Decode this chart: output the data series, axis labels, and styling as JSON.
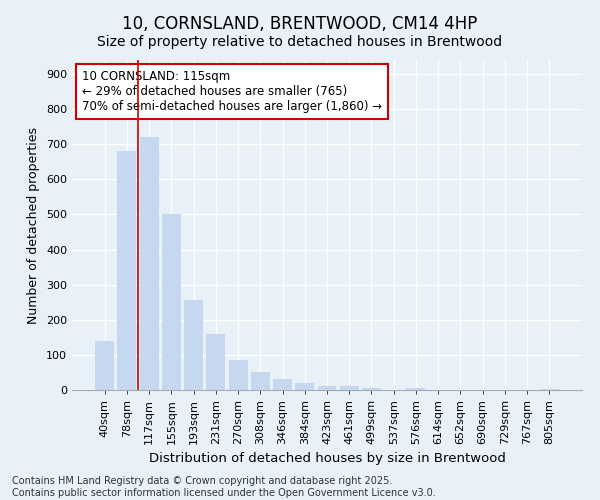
{
  "title": "10, CORNSLAND, BRENTWOOD, CM14 4HP",
  "subtitle": "Size of property relative to detached houses in Brentwood",
  "xlabel": "Distribution of detached houses by size in Brentwood",
  "ylabel": "Number of detached properties",
  "categories": [
    "40sqm",
    "78sqm",
    "117sqm",
    "155sqm",
    "193sqm",
    "231sqm",
    "270sqm",
    "308sqm",
    "346sqm",
    "384sqm",
    "423sqm",
    "461sqm",
    "499sqm",
    "537sqm",
    "576sqm",
    "614sqm",
    "652sqm",
    "690sqm",
    "729sqm",
    "767sqm",
    "805sqm"
  ],
  "values": [
    140,
    680,
    720,
    500,
    255,
    160,
    85,
    50,
    30,
    20,
    10,
    10,
    5,
    0,
    5,
    0,
    0,
    0,
    0,
    0,
    3
  ],
  "bar_color": "#c5d8f0",
  "bar_edgecolor": "#c5d8f0",
  "vline_x_index": 2,
  "vline_color": "#cc0000",
  "annotation_text": "10 CORNSLAND: 115sqm\n← 29% of detached houses are smaller (765)\n70% of semi-detached houses are larger (1,860) →",
  "annotation_box_color": "#cc0000",
  "annotation_bg": "#ffffff",
  "ylim": [
    0,
    940
  ],
  "yticks": [
    0,
    100,
    200,
    300,
    400,
    500,
    600,
    700,
    800,
    900
  ],
  "background_color": "#e8f0f8",
  "grid_color": "#ffffff",
  "footer": "Contains HM Land Registry data © Crown copyright and database right 2025.\nContains public sector information licensed under the Open Government Licence v3.0.",
  "title_fontsize": 12,
  "subtitle_fontsize": 10,
  "xlabel_fontsize": 9.5,
  "ylabel_fontsize": 9,
  "tick_fontsize": 8,
  "annotation_fontsize": 8.5,
  "footer_fontsize": 7
}
